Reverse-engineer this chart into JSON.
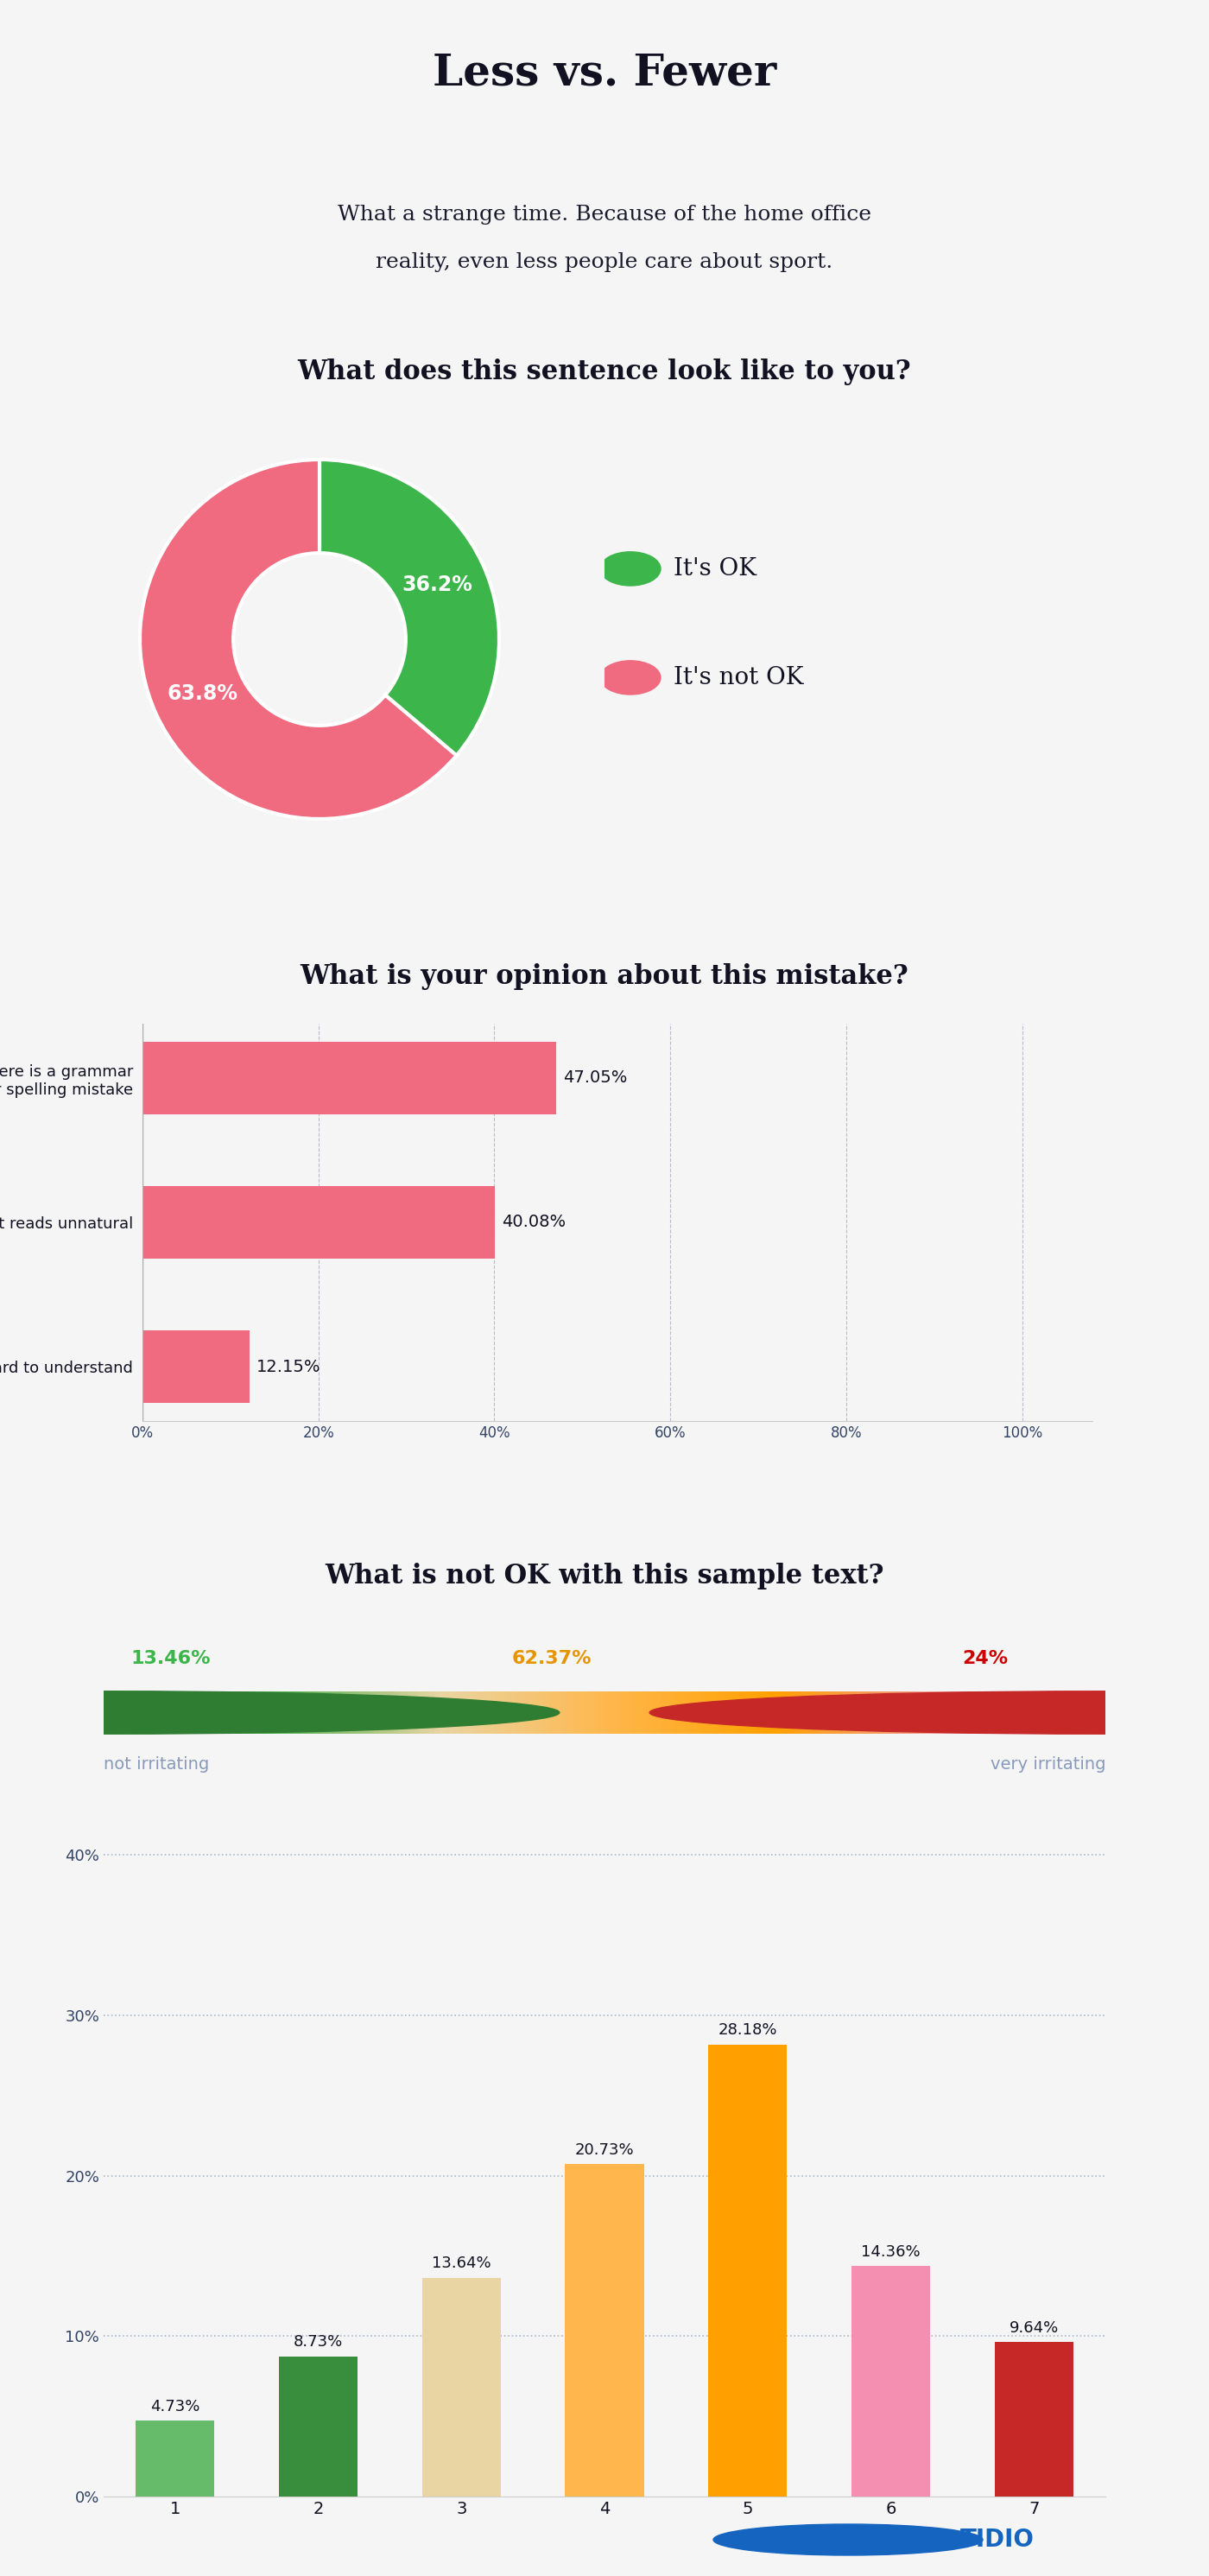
{
  "title": "Less vs. Fewer",
  "subtitle_line1": "What a strange time. Because of the home office",
  "subtitle_line2": "reality, even less people care about sport.",
  "background_color": "#f5f5f5",
  "box_bg_color": "#e8e8e8",
  "donut_title": "What does this sentence look like to you?",
  "donut_values": [
    36.2,
    63.8
  ],
  "donut_labels": [
    "36.2%",
    "63.8%"
  ],
  "donut_legend": [
    "It's OK",
    "It's not OK"
  ],
  "donut_colors": [
    "#3cb54a",
    "#f06b80"
  ],
  "bar_title": "What is your opinion about this mistake?",
  "bar_categories": [
    "There is a grammar\nor spelling mistake",
    "It reads unnatural",
    "It's hard to understand"
  ],
  "bar_values": [
    47.05,
    40.08,
    12.15
  ],
  "bar_labels": [
    "47.05%",
    "40.08%",
    "12.15%"
  ],
  "bar_color": "#f06b80",
  "scale_title": "What is not OK with this sample text?",
  "scale_segments": [
    13.46,
    62.37,
    24.0
  ],
  "scale_labels": [
    "13.46%",
    "62.37%",
    "24%"
  ],
  "scale_label_colors": [
    "#3cb54a",
    "#e69500",
    "#cc0000"
  ],
  "scale_colors": [
    "#2e7d32",
    "#4caf50",
    "#a5d6a7",
    "#ffcc80",
    "#ffa726",
    "#ef9a9a",
    "#c62828"
  ],
  "scale_left_label": "not irritating",
  "scale_right_label": "very irritating",
  "scale_note_color": "#8899bb",
  "histogram_values": [
    4.73,
    8.73,
    13.64,
    20.73,
    28.18,
    14.36,
    9.64
  ],
  "histogram_labels": [
    "4.73%",
    "8.73%",
    "13.64%",
    "20.73%",
    "28.18%",
    "14.36%",
    "9.64%"
  ],
  "histogram_categories": [
    "1",
    "2",
    "3",
    "4",
    "5",
    "6",
    "7"
  ],
  "histogram_colors": [
    "#66bb6a",
    "#388e3c",
    "#e8d5a3",
    "#ffb74d",
    "#ffa000",
    "#f48fb1",
    "#c62828"
  ],
  "histogram_yticks": [
    0,
    10,
    20,
    30,
    40
  ],
  "divider_color": "#cccccc",
  "tidio_color": "#1565c0",
  "title_color": "#111122",
  "text_color": "#1a1a2e",
  "axis_label_color": "#334466"
}
